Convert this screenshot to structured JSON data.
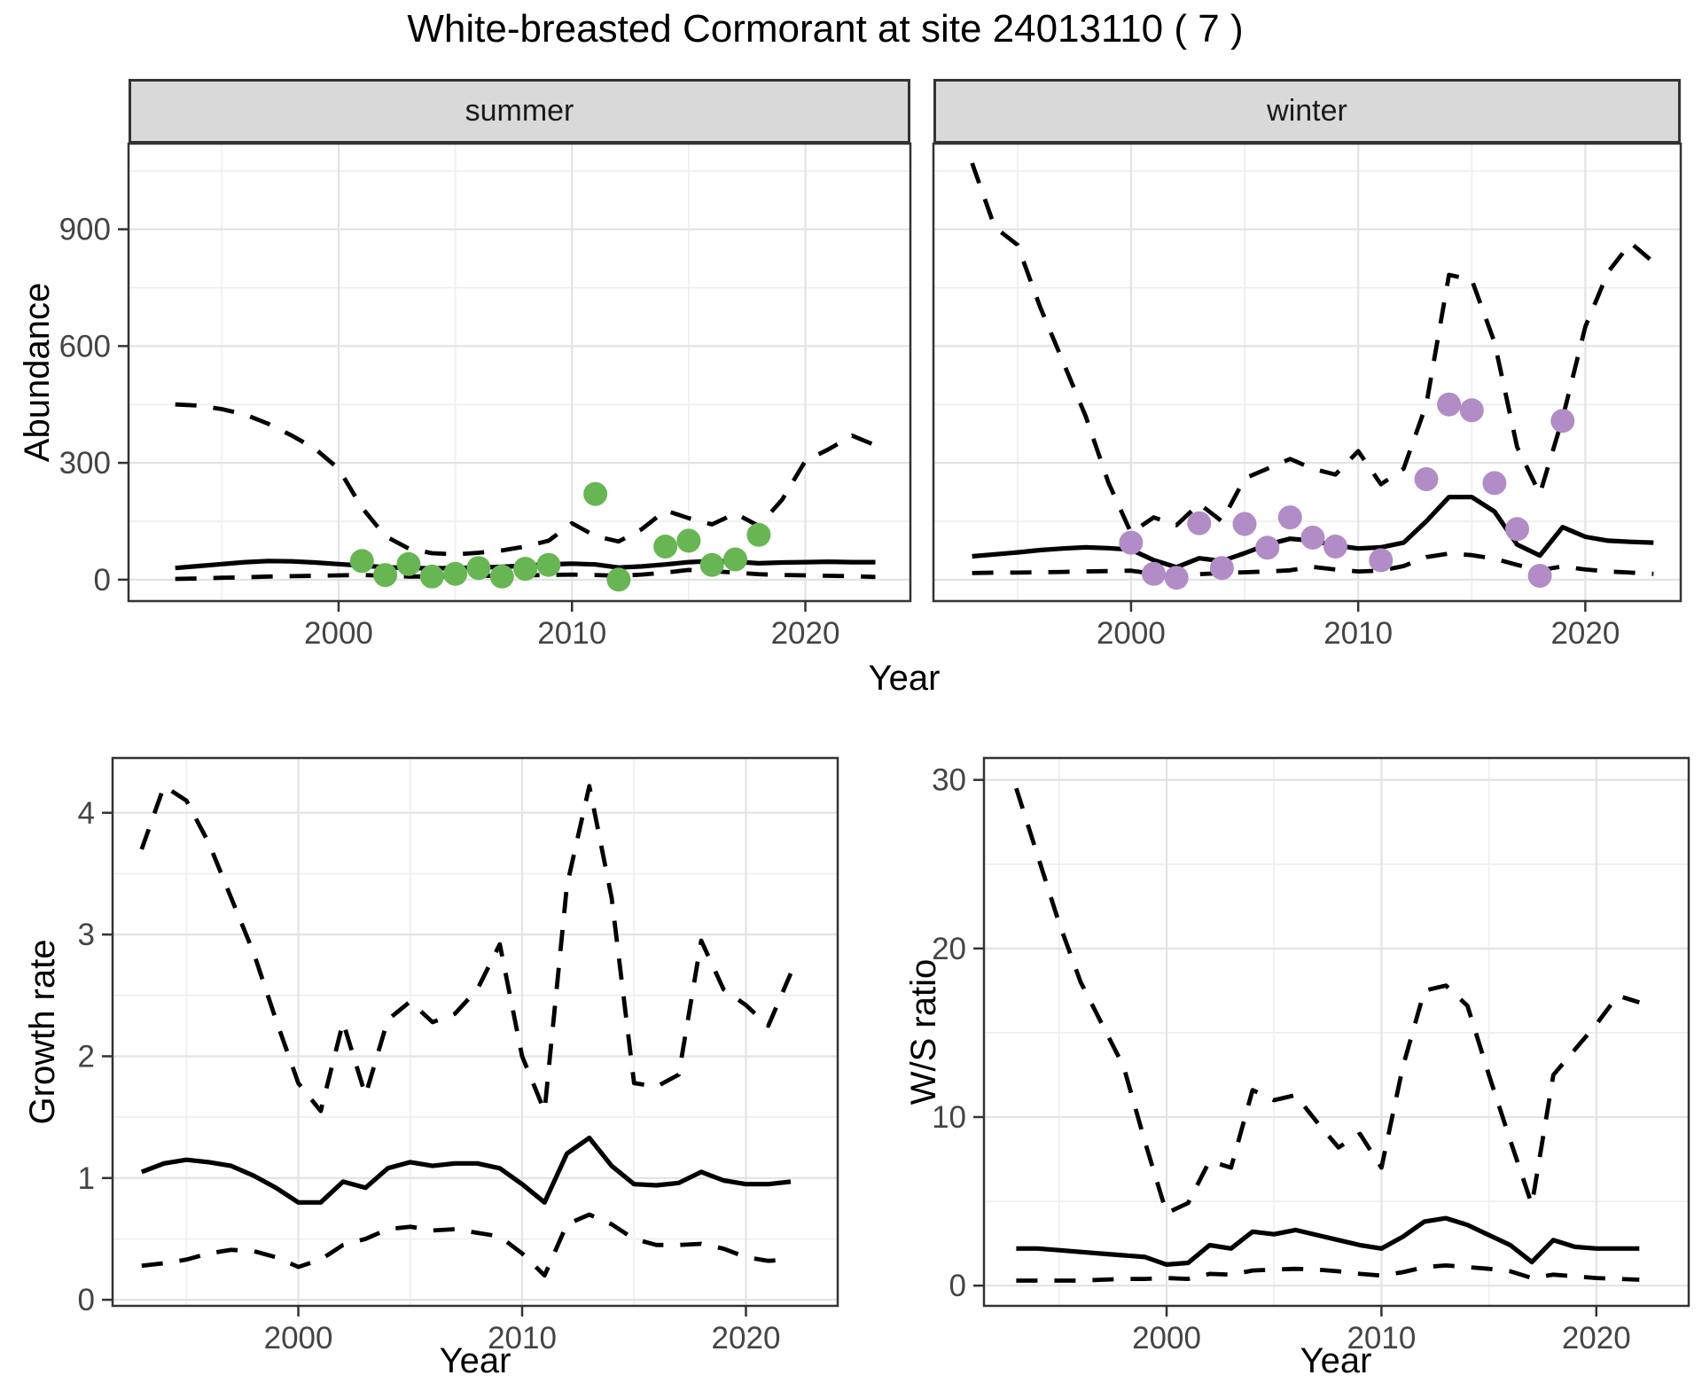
{
  "title": "White-breasted Cormorant at site 24013110 ( 7 )",
  "colors": {
    "background": "#ffffff",
    "panel_background": "#ffffff",
    "panel_border": "#333333",
    "strip_fill": "#d9d9d9",
    "grid_major": "#e3e3e3",
    "grid_minor": "#efefef",
    "tick_text": "#444444",
    "line": "#000000",
    "summer_points": "#67b653",
    "winter_points": "#b28cc6"
  },
  "chart_data": [
    {
      "type": "line",
      "panel": "abundance-summer",
      "facet_label": "summer",
      "ylabel": "Abundance",
      "xlabel": "Year",
      "xlim": [
        1991.0,
        2024.5
      ],
      "ylim": [
        -55,
        1120
      ],
      "x_ticks": [
        2000,
        2010,
        2020
      ],
      "y_ticks": [
        0,
        300,
        600,
        900
      ],
      "x_minor": [
        1995,
        2005,
        2015
      ],
      "y_minor": [
        150,
        450,
        750,
        1050
      ],
      "grid": true,
      "legend": "none",
      "series": [
        {
          "name": "upper_95ci",
          "style": "dashed",
          "start": 1993,
          "values": [
            450,
            447,
            438,
            424,
            400,
            370,
            336,
            285,
            185,
            112,
            80,
            68,
            65,
            69,
            75,
            85,
            100,
            145,
            112,
            98,
            130,
            178,
            158,
            142,
            170,
            138,
            205,
            305,
            335,
            370,
            345
          ]
        },
        {
          "name": "median",
          "style": "solid",
          "start": 1993,
          "values": [
            30,
            35,
            40,
            45,
            48,
            47,
            44,
            40,
            36,
            32,
            30,
            29,
            30,
            31,
            33,
            36,
            39,
            41,
            39,
            31,
            34,
            39,
            45,
            48,
            46,
            42,
            44,
            45,
            46,
            45,
            45
          ]
        },
        {
          "name": "lower_95ci",
          "style": "dashed",
          "start": 1993,
          "values": [
            2,
            3,
            5,
            6,
            8,
            9,
            10,
            11,
            12,
            10,
            8,
            8,
            9,
            10,
            10,
            11,
            12,
            13,
            12,
            10,
            13,
            18,
            25,
            22,
            18,
            14,
            12,
            11,
            10,
            9,
            7
          ]
        }
      ],
      "points": {
        "name": "observed_counts_summer",
        "color": "#67b653",
        "data": [
          [
            2001,
            48
          ],
          [
            2002,
            12
          ],
          [
            2003,
            40
          ],
          [
            2004,
            8
          ],
          [
            2005,
            15
          ],
          [
            2006,
            30
          ],
          [
            2007,
            8
          ],
          [
            2008,
            28
          ],
          [
            2009,
            38
          ],
          [
            2011,
            220
          ],
          [
            2012,
            0
          ],
          [
            2014,
            85
          ],
          [
            2015,
            100
          ],
          [
            2016,
            38
          ],
          [
            2017,
            52
          ],
          [
            2018,
            115
          ]
        ]
      }
    },
    {
      "type": "line",
      "panel": "abundance-winter",
      "facet_label": "winter",
      "ylabel": "Abundance",
      "xlabel": "Year",
      "xlim": [
        1991.3,
        2024.2
      ],
      "ylim": [
        -55,
        1120
      ],
      "x_ticks": [
        2000,
        2010,
        2020
      ],
      "y_ticks": [
        0,
        300,
        600,
        900
      ],
      "x_minor": [
        1995,
        2005,
        2015
      ],
      "y_minor": [
        150,
        450,
        750,
        1050
      ],
      "grid": true,
      "legend": "none",
      "series": [
        {
          "name": "upper_95ci",
          "style": "dashed",
          "start": 1993,
          "values": [
            1070,
            905,
            860,
            700,
            560,
            420,
            250,
            120,
            160,
            140,
            195,
            150,
            260,
            285,
            310,
            285,
            270,
            330,
            245,
            285,
            450,
            783,
            770,
            610,
            340,
            220,
            415,
            650,
            790,
            865,
            815
          ]
        },
        {
          "name": "median",
          "style": "solid",
          "start": 1993,
          "values": [
            60,
            65,
            70,
            76,
            80,
            83,
            81,
            77,
            50,
            32,
            55,
            48,
            68,
            90,
            105,
            100,
            88,
            80,
            83,
            95,
            150,
            212,
            212,
            175,
            90,
            62,
            135,
            110,
            100,
            97,
            95
          ]
        },
        {
          "name": "lower_95ci",
          "style": "dashed",
          "start": 1993,
          "values": [
            17,
            18,
            18,
            19,
            20,
            21,
            22,
            23,
            15,
            6,
            14,
            17,
            19,
            21,
            24,
            33,
            26,
            21,
            23,
            35,
            58,
            67,
            63,
            54,
            38,
            24,
            34,
            26,
            21,
            18,
            15
          ]
        }
      ],
      "points": {
        "name": "observed_counts_winter",
        "color": "#b28cc6",
        "data": [
          [
            2000,
            95
          ],
          [
            2001,
            15
          ],
          [
            2002,
            5
          ],
          [
            2003,
            145
          ],
          [
            2004,
            30
          ],
          [
            2005,
            143
          ],
          [
            2006,
            82
          ],
          [
            2007,
            160
          ],
          [
            2008,
            108
          ],
          [
            2009,
            85
          ],
          [
            2011,
            50
          ],
          [
            2013,
            258
          ],
          [
            2014,
            450
          ],
          [
            2015,
            435
          ],
          [
            2016,
            248
          ],
          [
            2017,
            130
          ],
          [
            2018,
            10
          ],
          [
            2019,
            408
          ]
        ]
      }
    },
    {
      "type": "line",
      "panel": "growth-rate",
      "facet_label": "",
      "ylabel": "Growth rate",
      "xlabel": "Year",
      "xlim": [
        1991.7,
        2024.1
      ],
      "ylim": [
        -0.05,
        4.45
      ],
      "x_ticks": [
        2000,
        2010,
        2020
      ],
      "y_ticks": [
        0,
        1,
        2,
        3,
        4
      ],
      "x_minor": [
        1995,
        2005,
        2015
      ],
      "y_minor": [
        0.5,
        1.5,
        2.5,
        3.5
      ],
      "grid": true,
      "legend": "none",
      "series": [
        {
          "name": "upper_95ci",
          "style": "dashed",
          "start": 1993,
          "values": [
            3.7,
            4.22,
            4.1,
            3.75,
            3.3,
            2.85,
            2.3,
            1.78,
            1.55,
            2.28,
            1.68,
            2.3,
            2.45,
            2.28,
            2.35,
            2.55,
            2.92,
            2.0,
            1.55,
            3.4,
            4.22,
            3.3,
            1.78,
            1.75,
            1.85,
            2.95,
            2.55,
            2.42,
            2.25,
            2.68
          ]
        },
        {
          "name": "median",
          "style": "solid",
          "start": 1993,
          "values": [
            1.05,
            1.12,
            1.15,
            1.13,
            1.1,
            1.02,
            0.92,
            0.8,
            0.8,
            0.97,
            0.92,
            1.08,
            1.13,
            1.1,
            1.12,
            1.12,
            1.08,
            0.95,
            0.8,
            1.2,
            1.33,
            1.1,
            0.95,
            0.94,
            0.96,
            1.05,
            0.98,
            0.95,
            0.95,
            0.97
          ]
        },
        {
          "name": "lower_95ci",
          "style": "dashed",
          "start": 1993,
          "values": [
            0.28,
            0.3,
            0.33,
            0.38,
            0.41,
            0.4,
            0.35,
            0.27,
            0.33,
            0.45,
            0.5,
            0.58,
            0.6,
            0.57,
            0.58,
            0.55,
            0.52,
            0.38,
            0.2,
            0.62,
            0.7,
            0.62,
            0.5,
            0.45,
            0.45,
            0.46,
            0.42,
            0.35,
            0.32,
            0.33
          ]
        }
      ],
      "points": null
    },
    {
      "type": "line",
      "panel": "ws-ratio",
      "facet_label": "",
      "ylabel": "W/S ratio",
      "xlabel": "Year",
      "xlim": [
        1991.5,
        2024.3
      ],
      "ylim": [
        -1.2,
        31.3
      ],
      "x_ticks": [
        2000,
        2010,
        2020
      ],
      "y_ticks": [
        0,
        10,
        20,
        30
      ],
      "x_minor": [
        1995,
        2005,
        2015
      ],
      "y_minor": [
        5,
        15,
        25
      ],
      "grid": true,
      "legend": "none",
      "series": [
        {
          "name": "upper_95ci",
          "style": "dashed",
          "start": 1993,
          "values": [
            29.5,
            25.5,
            21.5,
            18.0,
            15.5,
            13.0,
            8.5,
            4.3,
            4.9,
            7.4,
            7.0,
            11.6,
            11.0,
            11.3,
            9.7,
            8.2,
            9.0,
            7.0,
            13.0,
            17.5,
            17.8,
            16.6,
            12.5,
            8.6,
            4.8,
            12.5,
            14.0,
            15.5,
            17.2,
            16.8
          ]
        },
        {
          "name": "median",
          "style": "solid",
          "start": 1993,
          "values": [
            2.2,
            2.2,
            2.1,
            2.0,
            1.9,
            1.8,
            1.7,
            1.25,
            1.35,
            2.4,
            2.2,
            3.2,
            3.05,
            3.3,
            3.0,
            2.7,
            2.4,
            2.2,
            2.9,
            3.8,
            4.0,
            3.6,
            3.0,
            2.4,
            1.4,
            2.7,
            2.3,
            2.2,
            2.2,
            2.2
          ]
        },
        {
          "name": "lower_95ci",
          "style": "dashed",
          "start": 1993,
          "values": [
            0.3,
            0.3,
            0.3,
            0.3,
            0.35,
            0.4,
            0.4,
            0.45,
            0.4,
            0.7,
            0.65,
            0.9,
            0.95,
            1.0,
            0.95,
            0.85,
            0.7,
            0.6,
            0.8,
            1.1,
            1.2,
            1.1,
            1.0,
            0.85,
            0.45,
            0.65,
            0.55,
            0.45,
            0.4,
            0.35
          ]
        }
      ],
      "points": null
    }
  ]
}
